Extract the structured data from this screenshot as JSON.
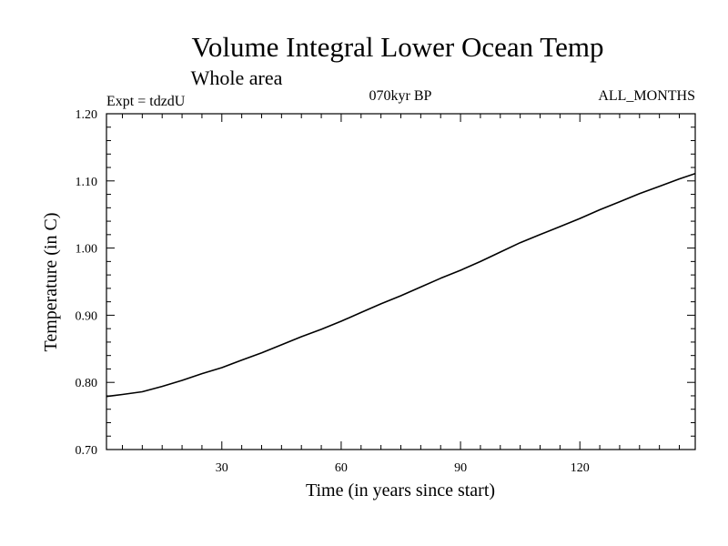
{
  "chart_data": {
    "type": "line",
    "title": "Volume Integral Lower Ocean Temp",
    "subtitle": "Whole area",
    "experiment": "Expt = tdzdU",
    "period": "070kyr BP",
    "months": "ALL_MONTHS",
    "xlabel": "Time (in years since start)",
    "ylabel": "Temperature (in C)",
    "xlim": [
      1,
      149
    ],
    "ylim": [
      0.7,
      1.2
    ],
    "xticks": [
      30,
      60,
      90,
      120
    ],
    "xtick_labels": [
      "30",
      "60",
      "90",
      "120"
    ],
    "yticks": [
      0.7,
      0.8,
      0.9,
      1.0,
      1.1,
      1.2
    ],
    "ytick_labels": [
      "0.70",
      "0.80",
      "0.90",
      "1.00",
      "1.10",
      "1.20"
    ],
    "x_minor_step": 5,
    "y_minor_step": 0.02,
    "grid": false,
    "series": [
      {
        "name": "Volume Integral Lower Ocean Temp",
        "x": [
          1,
          5,
          10,
          15,
          20,
          25,
          30,
          35,
          40,
          45,
          50,
          55,
          60,
          65,
          70,
          75,
          80,
          85,
          90,
          95,
          100,
          105,
          110,
          115,
          120,
          125,
          130,
          135,
          140,
          145,
          149
        ],
        "values": [
          0.779,
          0.782,
          0.786,
          0.794,
          0.803,
          0.813,
          0.822,
          0.833,
          0.844,
          0.856,
          0.868,
          0.879,
          0.891,
          0.904,
          0.917,
          0.929,
          0.942,
          0.955,
          0.967,
          0.98,
          0.994,
          1.008,
          1.02,
          1.032,
          1.044,
          1.057,
          1.069,
          1.081,
          1.092,
          1.103,
          1.111
        ]
      }
    ]
  }
}
